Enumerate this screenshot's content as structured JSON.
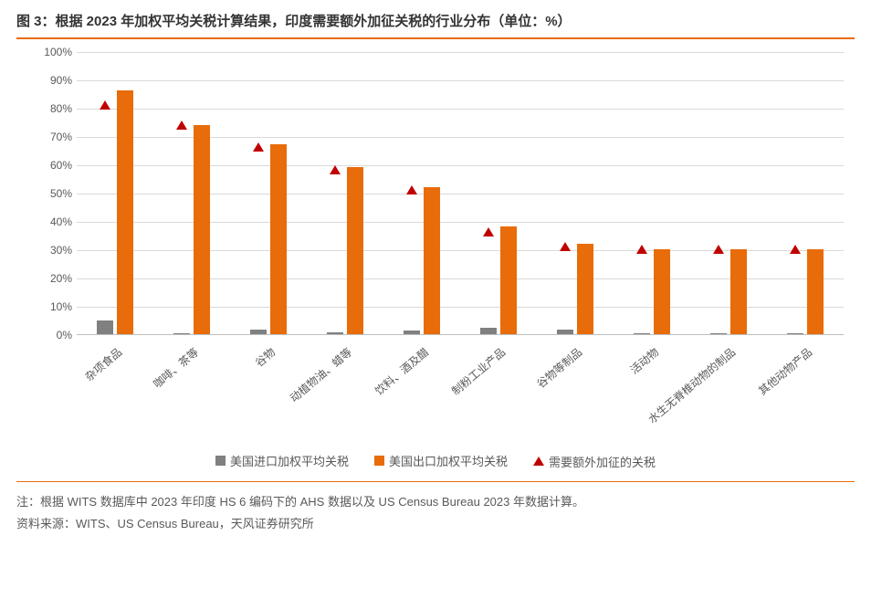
{
  "title": "图 3：根据 2023 年加权平均关税计算结果，印度需要额外加征关税的行业分布（单位：%）",
  "chart": {
    "type": "bar",
    "ylim": [
      0,
      100
    ],
    "ytick_step": 10,
    "ytick_suffix": "%",
    "grid_color": "#d9d9d9",
    "axis_color": "#bfbfbf",
    "label_fontsize": 12,
    "label_color": "#595959",
    "categories": [
      "杂项食品",
      "咖啡、茶等",
      "谷物",
      "动植物油、蜡等",
      "饮料、酒及醋",
      "制粉工业产品",
      "谷物等制品",
      "活动物",
      "水生无脊椎动物的制品",
      "其他动物产品"
    ],
    "series_a": {
      "label": "美国进口加权平均关税",
      "color": "#808080",
      "values": [
        5,
        0.3,
        1.5,
        0.8,
        1.2,
        2.2,
        1.6,
        0.3,
        0.2,
        0.2
      ]
    },
    "series_b": {
      "label": "美国出口加权平均关税",
      "color": "#e86c0a",
      "values": [
        86,
        74,
        67,
        59,
        52,
        38,
        32,
        30,
        30,
        30
      ]
    },
    "series_c": {
      "label": "需要额外加征的关税",
      "color": "#c00000",
      "marker": "triangle",
      "values": [
        81,
        74,
        66,
        58,
        51,
        36,
        31,
        30,
        30,
        30
      ]
    }
  },
  "legend": {
    "items": [
      {
        "key": "a",
        "label": "美国进口加权平均关税",
        "shape": "square",
        "color": "#808080"
      },
      {
        "key": "b",
        "label": "美国出口加权平均关税",
        "shape": "square",
        "color": "#e86c0a"
      },
      {
        "key": "c",
        "label": "需要额外加征的关税",
        "shape": "triangle",
        "color": "#c00000"
      }
    ]
  },
  "footnote_line1": "注：根据 WITS 数据库中 2023 年印度 HS 6 编码下的 AHS 数据以及 US Census Bureau 2023 年数据计算。",
  "footnote_line2": "资料来源：WITS、US Census Bureau，天风证券研究所"
}
